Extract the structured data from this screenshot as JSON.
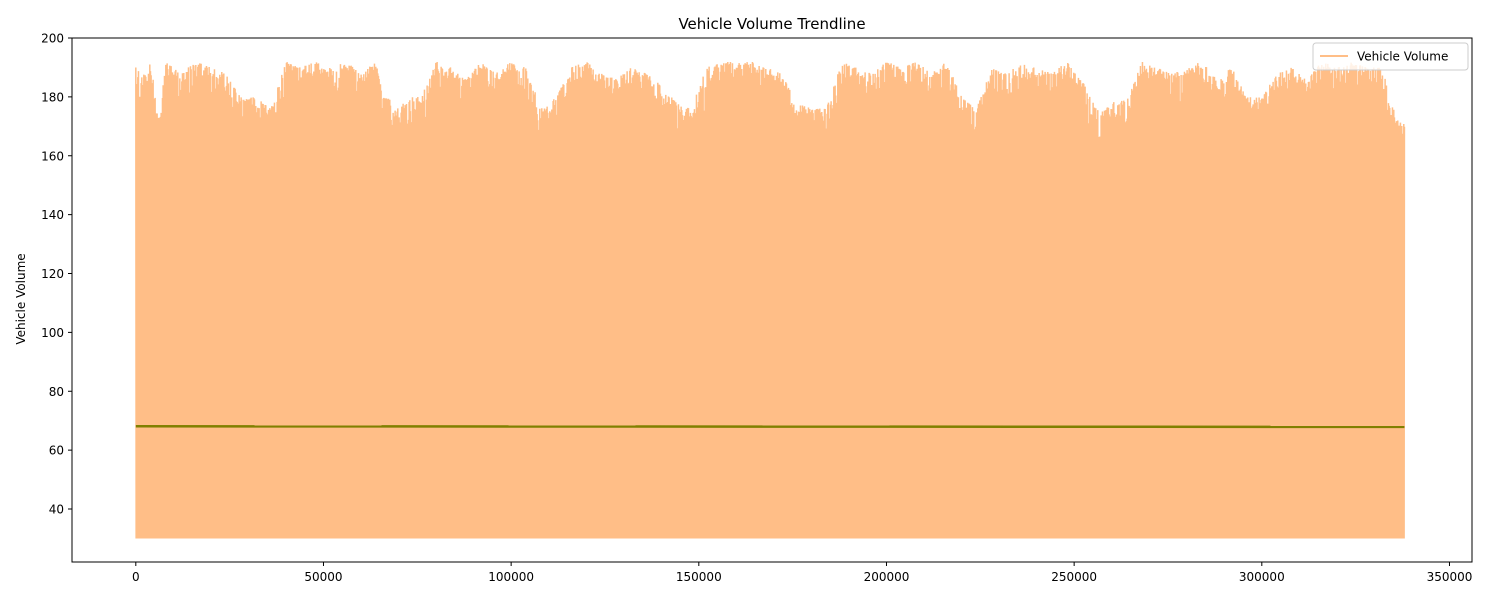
{
  "chart_data": {
    "type": "line",
    "title": "Vehicle Volume Trendline",
    "xlabel": "",
    "ylabel": "Vehicle Volume",
    "xlim": [
      -17000,
      356000
    ],
    "ylim": [
      22,
      200
    ],
    "x_ticks": [
      0,
      50000,
      100000,
      150000,
      200000,
      250000,
      300000,
      350000
    ],
    "x_tick_labels": [
      "0",
      "50000",
      "100000",
      "150000",
      "200000",
      "250000",
      "300000",
      "350000"
    ],
    "y_ticks": [
      40,
      60,
      80,
      100,
      120,
      140,
      160,
      180,
      200
    ],
    "y_tick_labels": [
      "40",
      "60",
      "80",
      "100",
      "120",
      "140",
      "160",
      "180",
      "200"
    ],
    "grid": false,
    "legend_position": "top-right",
    "colors": {
      "volume": "#ffbe87",
      "trend": "#808000"
    },
    "series": [
      {
        "name": "Vehicle Volume",
        "x_range": [
          0,
          338000
        ],
        "min_value": 30,
        "upper_envelope": {
          "x": [
            0,
            2000,
            4000,
            6000,
            8000,
            12000,
            16000,
            20000,
            24000,
            28000,
            32000,
            36000,
            40000,
            44000,
            48000,
            52000,
            56000,
            60000,
            64000,
            66000,
            68000,
            70000,
            72000,
            76000,
            80000,
            84000,
            88000,
            92000,
            96000,
            100000,
            104000,
            108000,
            112000,
            116000,
            120000,
            124000,
            128000,
            132000,
            136000,
            140000,
            144000,
            148000,
            152000,
            156000,
            160000,
            164000,
            168000,
            172000,
            176000,
            180000,
            184000,
            188000,
            192000,
            196000,
            200000,
            204000,
            208000,
            212000,
            216000,
            220000,
            224000,
            228000,
            232000,
            236000,
            240000,
            244000,
            248000,
            252000,
            256000,
            260000,
            264000,
            268000,
            272000,
            276000,
            280000,
            284000,
            288000,
            292000,
            296000,
            300000,
            304000,
            308000,
            312000,
            316000,
            320000,
            324000,
            328000,
            332000,
            336000,
            338000
          ],
          "y": [
            190,
            188,
            192,
            172,
            192,
            188,
            192,
            190,
            188,
            180,
            180,
            176,
            192,
            190,
            192,
            190,
            192,
            188,
            192,
            180,
            180,
            176,
            180,
            180,
            192,
            190,
            186,
            192,
            188,
            192,
            190,
            176,
            180,
            190,
            192,
            188,
            186,
            190,
            188,
            184,
            178,
            176,
            190,
            192,
            192,
            192,
            190,
            188,
            178,
            176,
            176,
            192,
            190,
            188,
            192,
            190,
            192,
            188,
            192,
            180,
            176,
            190,
            188,
            192,
            190,
            188,
            192,
            186,
            176,
            178,
            180,
            192,
            190,
            188,
            190,
            192,
            186,
            190,
            180,
            180,
            188,
            190,
            186,
            192,
            190,
            192,
            190,
            190,
            172,
            172
          ]
        }
      },
      {
        "name": "",
        "x": [
          0,
          338000
        ],
        "y": [
          68.1,
          67.9
        ]
      }
    ]
  }
}
